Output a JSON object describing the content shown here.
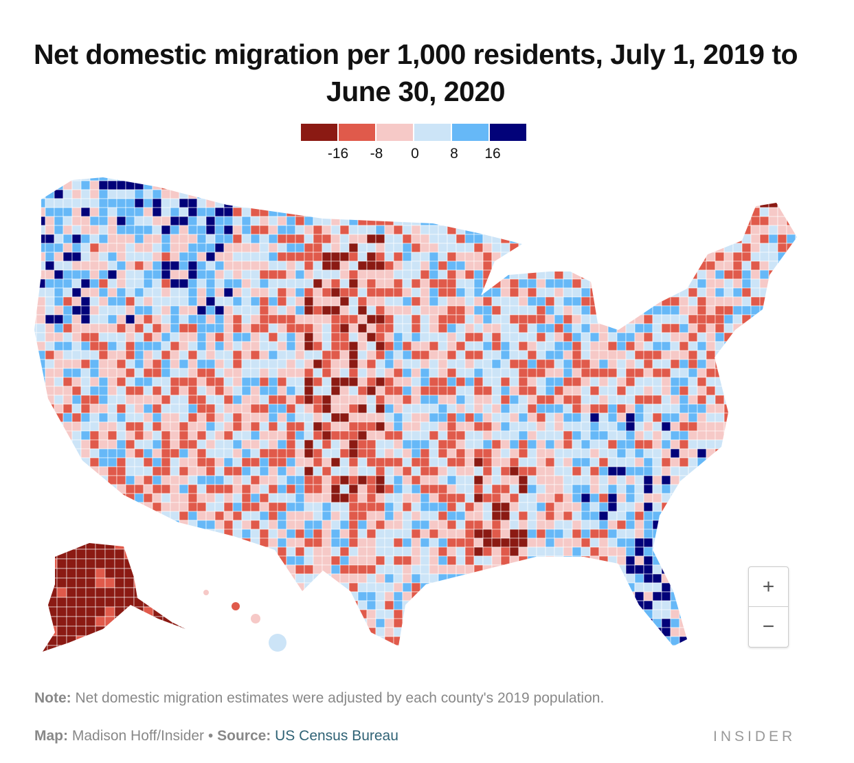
{
  "title": "Net domestic migration per 1,000 residents, July 1, 2019 to June 30, 2020",
  "legend": {
    "colors": [
      "#8b1a13",
      "#e05a4b",
      "#f6c9c7",
      "#cce4f7",
      "#66b8f7",
      "#020279"
    ],
    "ticks": [
      "-16",
      "-8",
      "0",
      "8",
      "16"
    ]
  },
  "zoom_controls": {
    "zoom_in": "+",
    "zoom_out": "−"
  },
  "note": {
    "label": "Note:",
    "text": "Net domestic migration estimates were adjusted by each county's 2019 population."
  },
  "credit": {
    "map_label": "Map:",
    "map_author": "Madison Hoff/Insider",
    "separator": "•",
    "source_label": "Source:",
    "source": "US Census Bureau"
  },
  "brand": "INSIDER"
}
